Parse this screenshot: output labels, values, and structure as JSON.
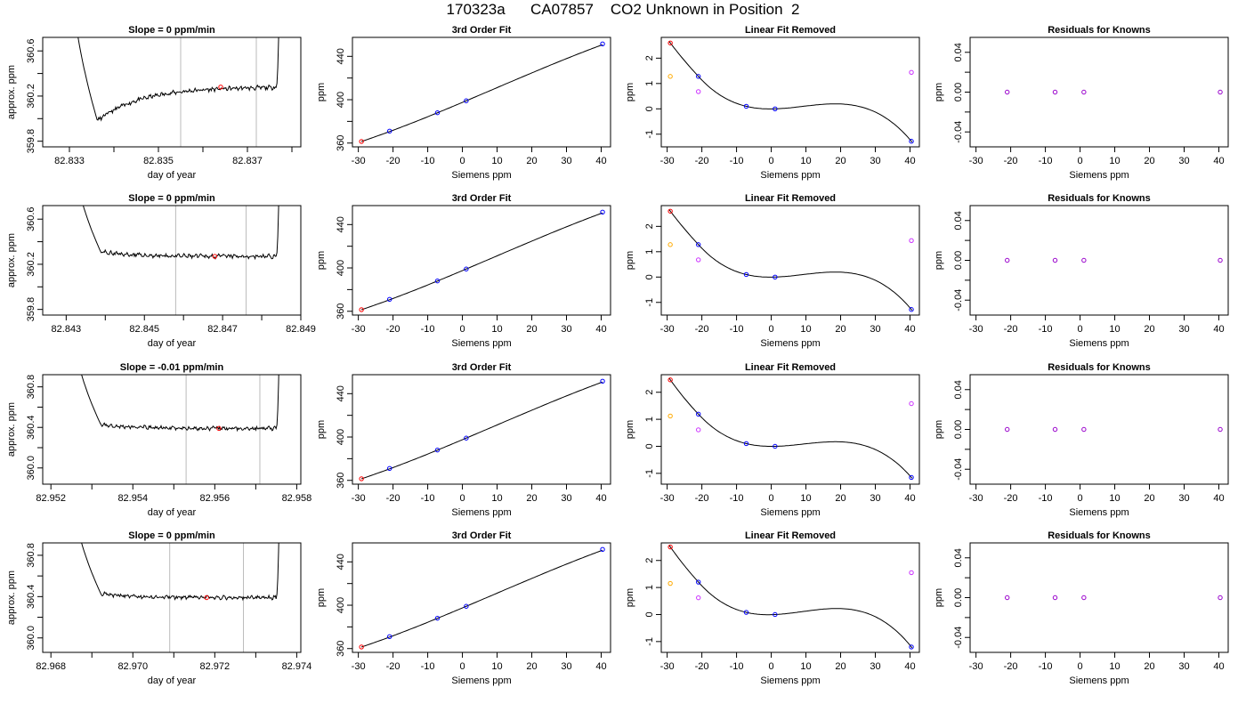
{
  "figure": {
    "title": "170323a      CA07857    CO2 Unknown in Position  2",
    "colors": {
      "line": "#000000",
      "grey_line": "#bbbbbb",
      "red": "#ff0000",
      "blue": "#0000ff",
      "purple": "#9900cc",
      "magenta": "#cc33ff",
      "orange": "#ffaa00"
    }
  },
  "chart_data": [
    {
      "type": "line",
      "title": "Slope =  0  ppm/min",
      "xlabel": "day of year",
      "ylabel": "approx. ppm",
      "xlim": [
        82.8324,
        82.8382
      ],
      "ylim": [
        359.75,
        360.72
      ],
      "xticks": [
        82.833,
        82.834,
        82.835,
        82.836,
        82.837,
        82.838
      ],
      "xtick_labels": [
        "82.833",
        "",
        "82.835",
        "",
        "82.837",
        ""
      ],
      "yticks": [
        359.8,
        360.0,
        360.2,
        360.4,
        360.6
      ],
      "ytick_labels": [
        "359.8",
        "",
        "360.2",
        "",
        "360.6"
      ],
      "vlines": [
        82.8355,
        82.8372
      ],
      "red_point": [
        82.8364,
        360.28
      ],
      "variant": 0,
      "seed": 11
    },
    {
      "type": "line",
      "title": "3rd Order Fit",
      "xlabel": "Siemens ppm",
      "ylabel": "ppm",
      "xlim": [
        -31.7,
        42.7
      ],
      "ylim": [
        356.5,
        457.5
      ],
      "xticks": [
        -30,
        -20,
        -10,
        0,
        10,
        20,
        30,
        40
      ],
      "xtick_labels": [
        "-30",
        "-20",
        "-10",
        "0",
        "10",
        "20",
        "30",
        "40"
      ],
      "yticks": [
        360,
        380,
        400,
        420,
        440
      ],
      "ytick_labels": [
        "360",
        "",
        "400",
        "",
        "440"
      ],
      "fit_points": [
        [
          -29.1,
          361.5
        ],
        [
          -21.0,
          371.0
        ],
        [
          -7.2,
          388.0
        ],
        [
          1.1,
          399.0
        ],
        [
          40.4,
          451.5
        ]
      ],
      "red_index": 0
    },
    {
      "type": "line",
      "title": "Linear Fit Removed",
      "xlabel": "Siemens ppm",
      "ylabel": "ppm",
      "xlim": [
        -31.7,
        42.7
      ],
      "ylim": [
        -1.5,
        2.82
      ],
      "xticks": [
        -30,
        -20,
        -10,
        0,
        10,
        20,
        30,
        40
      ],
      "xtick_labels": [
        "-30",
        "-20",
        "-10",
        "0",
        "10",
        "20",
        "30",
        "40"
      ],
      "yticks": [
        -1,
        0,
        1,
        2
      ],
      "ytick_labels": [
        "-1",
        "0",
        "1",
        "2"
      ],
      "cubic": [
        2.6,
        1.28,
        0.1,
        0.0,
        -1.28
      ],
      "red": [
        -29.1,
        2.6
      ],
      "orange": [
        -29.1,
        1.28
      ],
      "blue": [
        [
          -21.0,
          1.28
        ],
        [
          -7.2,
          0.1
        ],
        [
          1.1,
          0.0
        ],
        [
          40.4,
          -1.28
        ]
      ],
      "magenta": [
        [
          -21.0,
          0.68
        ],
        [
          40.4,
          1.44
        ]
      ]
    },
    {
      "type": "scatter",
      "title": "Residuals for Knowns",
      "xlabel": "Siemens ppm",
      "ylabel": "ppm",
      "xlim": [
        -31.7,
        42.7
      ],
      "ylim": [
        -0.055,
        0.055
      ],
      "xticks": [
        -30,
        -20,
        -10,
        0,
        10,
        20,
        30,
        40
      ],
      "xtick_labels": [
        "-30",
        "-20",
        "-10",
        "0",
        "10",
        "20",
        "30",
        "40"
      ],
      "yticks": [
        -0.04,
        -0.02,
        0.0,
        0.02,
        0.04
      ],
      "ytick_labels": [
        "-0.04",
        "",
        "0.00",
        "",
        "0.04"
      ],
      "x": [
        -21.0,
        -7.2,
        1.1,
        40.4
      ],
      "y": [
        0,
        0,
        0,
        0
      ]
    },
    {
      "type": "line",
      "title": "Slope =  0  ppm/min",
      "xlabel": "day of year",
      "ylabel": "approx. ppm",
      "xlim": [
        82.8424,
        82.849
      ],
      "ylim": [
        359.75,
        360.72
      ],
      "xticks": [
        82.843,
        82.844,
        82.845,
        82.846,
        82.847,
        82.848,
        82.849
      ],
      "xtick_labels": [
        "82.843",
        "",
        "82.845",
        "",
        "82.847",
        "",
        "82.849"
      ],
      "yticks": [
        359.8,
        360.0,
        360.2,
        360.4,
        360.6
      ],
      "ytick_labels": [
        "359.8",
        "",
        "360.2",
        "",
        "360.6"
      ],
      "vlines": [
        82.8458,
        82.8476
      ],
      "red_point": [
        82.8468,
        360.27
      ],
      "variant": 1,
      "seed": 23
    },
    {
      "type": "line",
      "title": "3rd Order Fit",
      "xlabel": "Siemens ppm",
      "ylabel": "ppm",
      "xlim": [
        -31.7,
        42.7
      ],
      "ylim": [
        356.5,
        457.5
      ],
      "xticks": [
        -30,
        -20,
        -10,
        0,
        10,
        20,
        30,
        40
      ],
      "xtick_labels": [
        "-30",
        "-20",
        "-10",
        "0",
        "10",
        "20",
        "30",
        "40"
      ],
      "yticks": [
        360,
        380,
        400,
        420,
        440
      ],
      "ytick_labels": [
        "360",
        "",
        "400",
        "",
        "440"
      ],
      "fit_points": [
        [
          -29.1,
          361.5
        ],
        [
          -21.0,
          371.0
        ],
        [
          -7.2,
          388.0
        ],
        [
          1.1,
          399.0
        ],
        [
          40.4,
          451.5
        ]
      ],
      "red_index": 0
    },
    {
      "type": "line",
      "title": "Linear Fit Removed",
      "xlabel": "Siemens ppm",
      "ylabel": "ppm",
      "xlim": [
        -31.7,
        42.7
      ],
      "ylim": [
        -1.5,
        2.82
      ],
      "xticks": [
        -30,
        -20,
        -10,
        0,
        10,
        20,
        30,
        40
      ],
      "xtick_labels": [
        "-30",
        "-20",
        "-10",
        "0",
        "10",
        "20",
        "30",
        "40"
      ],
      "yticks": [
        -1,
        0,
        1,
        2
      ],
      "ytick_labels": [
        "-1",
        "0",
        "1",
        "2"
      ],
      "cubic": [
        2.6,
        1.28,
        0.1,
        0.0,
        -1.28
      ],
      "red": [
        -29.1,
        2.6
      ],
      "orange": [
        -29.1,
        1.28
      ],
      "blue": [
        [
          -21.0,
          1.28
        ],
        [
          -7.2,
          0.1
        ],
        [
          1.1,
          0.0
        ],
        [
          40.4,
          -1.28
        ]
      ],
      "magenta": [
        [
          -21.0,
          0.68
        ],
        [
          40.4,
          1.44
        ]
      ]
    },
    {
      "type": "scatter",
      "title": "Residuals for Knowns",
      "xlabel": "Siemens ppm",
      "ylabel": "ppm",
      "xlim": [
        -31.7,
        42.7
      ],
      "ylim": [
        -0.055,
        0.055
      ],
      "xticks": [
        -30,
        -20,
        -10,
        0,
        10,
        20,
        30,
        40
      ],
      "xtick_labels": [
        "-30",
        "-20",
        "-10",
        "0",
        "10",
        "20",
        "30",
        "40"
      ],
      "yticks": [
        -0.04,
        -0.02,
        0.0,
        0.02,
        0.04
      ],
      "ytick_labels": [
        "-0.04",
        "",
        "0.00",
        "",
        "0.04"
      ],
      "x": [
        -21.0,
        -7.2,
        1.1,
        40.4
      ],
      "y": [
        0,
        0,
        0,
        0
      ]
    },
    {
      "type": "line",
      "title": "Slope =  -0.01  ppm/min",
      "xlabel": "day of year",
      "ylabel": "approx. ppm",
      "xlim": [
        82.9518,
        82.9581
      ],
      "ylim": [
        359.84,
        360.92
      ],
      "xticks": [
        82.952,
        82.953,
        82.954,
        82.955,
        82.956,
        82.957,
        82.958
      ],
      "xtick_labels": [
        "82.952",
        "",
        "82.954",
        "",
        "82.956",
        "",
        "82.958"
      ],
      "yticks": [
        360.0,
        360.2,
        360.4,
        360.6,
        360.8
      ],
      "ytick_labels": [
        "360.0",
        "",
        "360.4",
        "",
        "360.8"
      ],
      "vlines": [
        82.9553,
        82.9571
      ],
      "red_point": [
        82.9561,
        360.39
      ],
      "variant": 2,
      "seed": 37
    },
    {
      "type": "line",
      "title": "3rd Order Fit",
      "xlabel": "Siemens ppm",
      "ylabel": "ppm",
      "xlim": [
        -31.7,
        42.7
      ],
      "ylim": [
        356.5,
        457.5
      ],
      "xticks": [
        -30,
        -20,
        -10,
        0,
        10,
        20,
        30,
        40
      ],
      "xtick_labels": [
        "-30",
        "-20",
        "-10",
        "0",
        "10",
        "20",
        "30",
        "40"
      ],
      "yticks": [
        360,
        380,
        400,
        420,
        440
      ],
      "ytick_labels": [
        "360",
        "",
        "400",
        "",
        "440"
      ],
      "fit_points": [
        [
          -29.1,
          361.5
        ],
        [
          -21.0,
          371.0
        ],
        [
          -7.2,
          388.0
        ],
        [
          1.1,
          399.0
        ],
        [
          40.4,
          451.5
        ]
      ],
      "red_index": 0
    },
    {
      "type": "line",
      "title": "Linear Fit Removed",
      "xlabel": "Siemens ppm",
      "ylabel": "ppm",
      "xlim": [
        -31.7,
        42.7
      ],
      "ylim": [
        -1.4,
        2.65
      ],
      "xticks": [
        -30,
        -20,
        -10,
        0,
        10,
        20,
        30,
        40
      ],
      "xtick_labels": [
        "-30",
        "-20",
        "-10",
        "0",
        "10",
        "20",
        "30",
        "40"
      ],
      "yticks": [
        -1,
        0,
        1,
        2
      ],
      "ytick_labels": [
        "-1",
        "0",
        "1",
        "2"
      ],
      "cubic": [
        2.46,
        1.19,
        0.1,
        0.0,
        -1.15
      ],
      "red": [
        -29.1,
        2.46
      ],
      "orange": [
        -29.1,
        1.12
      ],
      "blue": [
        [
          -21.0,
          1.19
        ],
        [
          -7.2,
          0.1
        ],
        [
          1.1,
          0.0
        ],
        [
          40.4,
          -1.15
        ]
      ],
      "magenta": [
        [
          -21.0,
          0.61
        ],
        [
          40.4,
          1.58
        ]
      ]
    },
    {
      "type": "scatter",
      "title": "Residuals for Knowns",
      "xlabel": "Siemens ppm",
      "ylabel": "ppm",
      "xlim": [
        -31.7,
        42.7
      ],
      "ylim": [
        -0.055,
        0.055
      ],
      "xticks": [
        -30,
        -20,
        -10,
        0,
        10,
        20,
        30,
        40
      ],
      "xtick_labels": [
        "-30",
        "-20",
        "-10",
        "0",
        "10",
        "20",
        "30",
        "40"
      ],
      "yticks": [
        -0.04,
        -0.02,
        0.0,
        0.02,
        0.04
      ],
      "ytick_labels": [
        "-0.04",
        "",
        "0.00",
        "",
        "0.04"
      ],
      "x": [
        -21.0,
        -7.2,
        1.1,
        40.4
      ],
      "y": [
        0,
        0,
        0,
        0
      ]
    },
    {
      "type": "line",
      "title": "Slope =  0  ppm/min",
      "xlabel": "day of year",
      "ylabel": "approx. ppm",
      "xlim": [
        82.9678,
        82.9741
      ],
      "ylim": [
        359.86,
        360.92
      ],
      "xticks": [
        82.968,
        82.969,
        82.97,
        82.971,
        82.972,
        82.973,
        82.974
      ],
      "xtick_labels": [
        "82.968",
        "",
        "82.970",
        "",
        "82.972",
        "",
        "82.974"
      ],
      "yticks": [
        360.0,
        360.2,
        360.4,
        360.6,
        360.8
      ],
      "ytick_labels": [
        "360.0",
        "",
        "360.4",
        "",
        "360.8"
      ],
      "vlines": [
        82.9709,
        82.9727
      ],
      "red_point": [
        82.9718,
        360.39
      ],
      "variant": 3,
      "seed": 53
    },
    {
      "type": "line",
      "title": "3rd Order Fit",
      "xlabel": "Siemens ppm",
      "ylabel": "ppm",
      "xlim": [
        -31.7,
        42.7
      ],
      "ylim": [
        356.5,
        457.5
      ],
      "xticks": [
        -30,
        -20,
        -10,
        0,
        10,
        20,
        30,
        40
      ],
      "xtick_labels": [
        "-30",
        "-20",
        "-10",
        "0",
        "10",
        "20",
        "30",
        "40"
      ],
      "yticks": [
        360,
        380,
        400,
        420,
        440
      ],
      "ytick_labels": [
        "360",
        "",
        "400",
        "",
        "440"
      ],
      "fit_points": [
        [
          -29.1,
          361.5
        ],
        [
          -21.0,
          371.0
        ],
        [
          -7.2,
          388.0
        ],
        [
          1.1,
          399.0
        ],
        [
          40.4,
          451.5
        ]
      ],
      "red_index": 0
    },
    {
      "type": "line",
      "title": "Linear Fit Removed",
      "xlabel": "Siemens ppm",
      "ylabel": "ppm",
      "xlim": [
        -31.7,
        42.7
      ],
      "ylim": [
        -1.4,
        2.65
      ],
      "xticks": [
        -30,
        -20,
        -10,
        0,
        10,
        20,
        30,
        40
      ],
      "xtick_labels": [
        "-30",
        "-20",
        "-10",
        "0",
        "10",
        "20",
        "30",
        "40"
      ],
      "yticks": [
        -1,
        0,
        1,
        2
      ],
      "ytick_labels": [
        "-1",
        "0",
        "1",
        "2"
      ],
      "cubic": [
        2.5,
        1.2,
        0.08,
        0.0,
        -1.2
      ],
      "red": [
        -29.1,
        2.5
      ],
      "orange": [
        -29.1,
        1.15
      ],
      "blue": [
        [
          -21.0,
          1.2
        ],
        [
          -7.2,
          0.08
        ],
        [
          1.1,
          0.0
        ],
        [
          40.4,
          -1.2
        ]
      ],
      "magenta": [
        [
          -21.0,
          0.62
        ],
        [
          40.4,
          1.55
        ]
      ]
    },
    {
      "type": "scatter",
      "title": "Residuals for Knowns",
      "xlabel": "Siemens ppm",
      "ylabel": "ppm",
      "xlim": [
        -31.7,
        42.7
      ],
      "ylim": [
        -0.055,
        0.055
      ],
      "xticks": [
        -30,
        -20,
        -10,
        0,
        10,
        20,
        30,
        40
      ],
      "xtick_labels": [
        "-30",
        "-20",
        "-10",
        "0",
        "10",
        "20",
        "30",
        "40"
      ],
      "yticks": [
        -0.04,
        -0.02,
        0.0,
        0.02,
        0.04
      ],
      "ytick_labels": [
        "-0.04",
        "",
        "0.00",
        "",
        "0.04"
      ],
      "x": [
        -21.0,
        -7.2,
        1.1,
        40.4
      ],
      "y": [
        0,
        0,
        0,
        0
      ]
    }
  ]
}
